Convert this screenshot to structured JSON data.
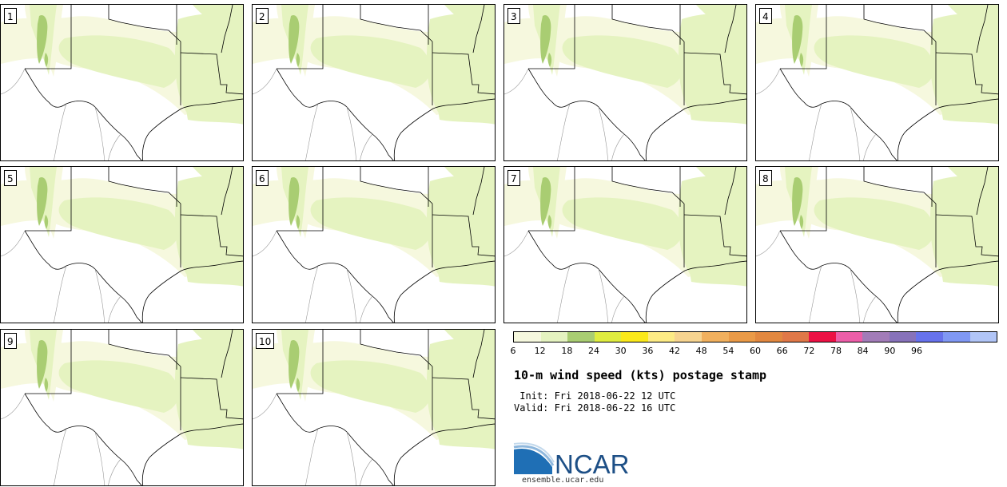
{
  "panels": [
    {
      "label": "1"
    },
    {
      "label": "2"
    },
    {
      "label": "3"
    },
    {
      "label": "4"
    },
    {
      "label": "5"
    },
    {
      "label": "6"
    },
    {
      "label": "7"
    },
    {
      "label": "8"
    },
    {
      "label": "9"
    },
    {
      "label": "10"
    }
  ],
  "colorbar": {
    "colors": [
      "#f6f8de",
      "#e5f3c0",
      "#a9cd72",
      "#dfec40",
      "#fbe91b",
      "#fdeb85",
      "#f7d490",
      "#f1b05e",
      "#ea9a47",
      "#e28840",
      "#e07848",
      "#ec1144",
      "#ec5ea8",
      "#a27cb8",
      "#8772ba",
      "#6772ec",
      "#8098f4",
      "#b1c5f7"
    ],
    "ticks": [
      "6",
      "12",
      "18",
      "24",
      "30",
      "36",
      "42",
      "48",
      "54",
      "60",
      "66",
      "72",
      "78",
      "84",
      "90",
      "96"
    ]
  },
  "title": "10-m wind speed (kts) postage stamp",
  "init": " Init: Fri 2018-06-22 12 UTC",
  "valid": "Valid: Fri 2018-06-22 16 UTC",
  "logo": {
    "text": "NCAR",
    "url": "ensemble.ucar.edu"
  }
}
